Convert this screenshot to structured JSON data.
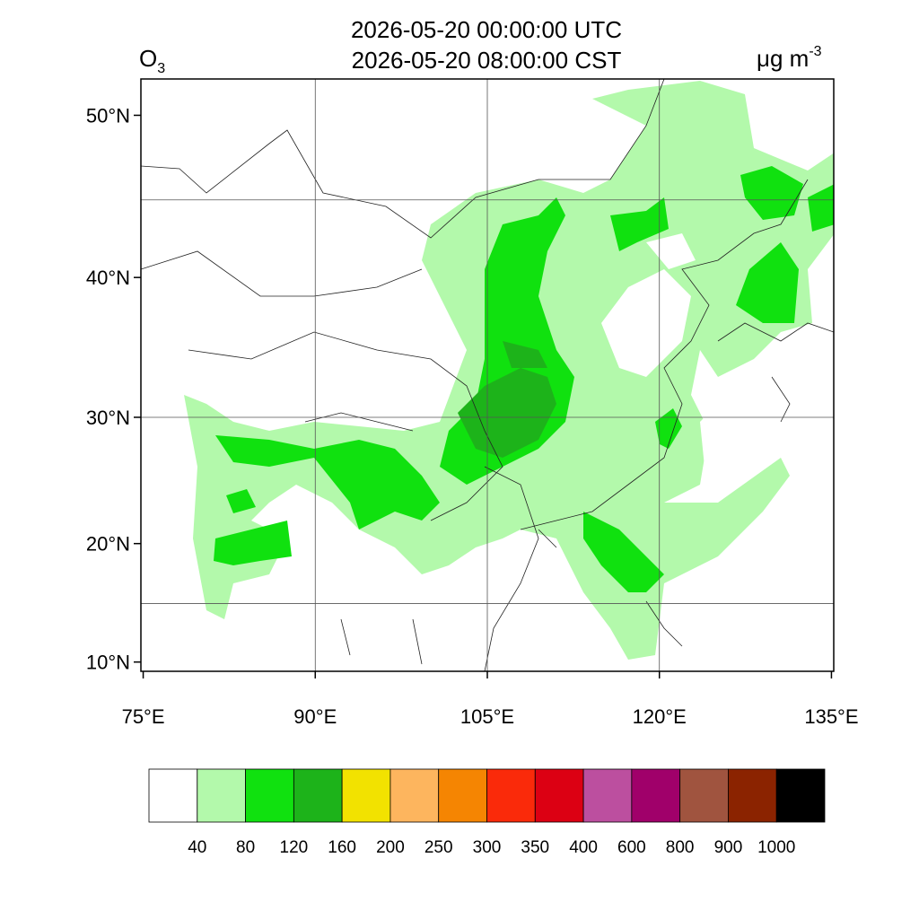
{
  "title_lines": [
    "2026-05-20 00:00:00 UTC",
    "2026-05-20 08:00:00 CST"
  ],
  "variable": {
    "base": "O",
    "sub": "3"
  },
  "units": {
    "base": "μg m",
    "sup": "-3"
  },
  "map": {
    "xlim": [
      74.8,
      135.2
    ],
    "ylim": [
      9.2,
      52.0
    ],
    "projection": "mercator",
    "xticks": [
      {
        "value": 75,
        "label": "75°E"
      },
      {
        "value": 90,
        "label": "90°E"
      },
      {
        "value": 105,
        "label": "105°E"
      },
      {
        "value": 120,
        "label": "120°E"
      },
      {
        "value": 135,
        "label": "135°E"
      }
    ],
    "yticks": [
      {
        "value": 10,
        "label": "10°N"
      },
      {
        "value": 20,
        "label": "20°N"
      },
      {
        "value": 30,
        "label": "30°N"
      },
      {
        "value": 40,
        "label": "40°N"
      },
      {
        "value": 50,
        "label": "50°N"
      }
    ],
    "grid_lons": [
      90,
      105,
      120
    ],
    "grid_lats": [
      15,
      30,
      45
    ]
  },
  "colorbar": {
    "levels": [
      40,
      80,
      120,
      160,
      200,
      250,
      300,
      350,
      400,
      600,
      800,
      900,
      1000
    ],
    "colors": [
      "#ffffff",
      "#b3f9ab",
      "#10e10f",
      "#1db31a",
      "#f2e200",
      "#fdb55e",
      "#f58502",
      "#fa2a0a",
      "#dc0013",
      "#bc4f9f",
      "#a0006a",
      "#a0543f",
      "#8b2300",
      "#000000"
    ]
  }
}
